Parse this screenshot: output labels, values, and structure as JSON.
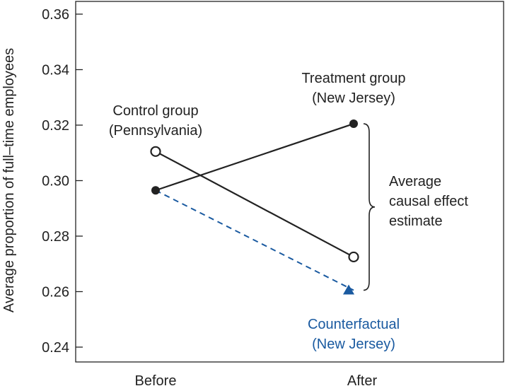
{
  "chart_data": {
    "type": "line",
    "title": "",
    "xlabel": "",
    "ylabel": "Average proportion of full–time employees",
    "categories": [
      "Before",
      "After"
    ],
    "ylim": [
      0.24,
      0.36
    ],
    "yticks": [
      "0.24",
      "0.26",
      "0.28",
      "0.30",
      "0.32",
      "0.34",
      "0.36"
    ],
    "grid": false,
    "series": [
      {
        "name": "Treatment group (New Jersey)",
        "label_lines": [
          "Treatment group",
          "(New Jersey)"
        ],
        "values": [
          0.2965,
          0.3205
        ],
        "marker": "filled-circle",
        "line": "solid",
        "color": "#222222"
      },
      {
        "name": "Control group (Pennsylvania)",
        "label_lines": [
          "Control group",
          "(Pennsylvania)"
        ],
        "values": [
          0.3105,
          0.2725
        ],
        "marker": "open-circle",
        "line": "solid",
        "color": "#222222"
      },
      {
        "name": "Counterfactual (New Jersey)",
        "label_lines": [
          "Counterfactual",
          "(New Jersey)"
        ],
        "values": [
          0.2965,
          0.2605
        ],
        "marker": "triangle",
        "line": "dashed",
        "color": "#1a5aa0"
      }
    ],
    "annotation": {
      "label_lines": [
        "Average",
        "causal effect",
        "estimate"
      ],
      "range": [
        0.2605,
        0.3205
      ]
    }
  }
}
